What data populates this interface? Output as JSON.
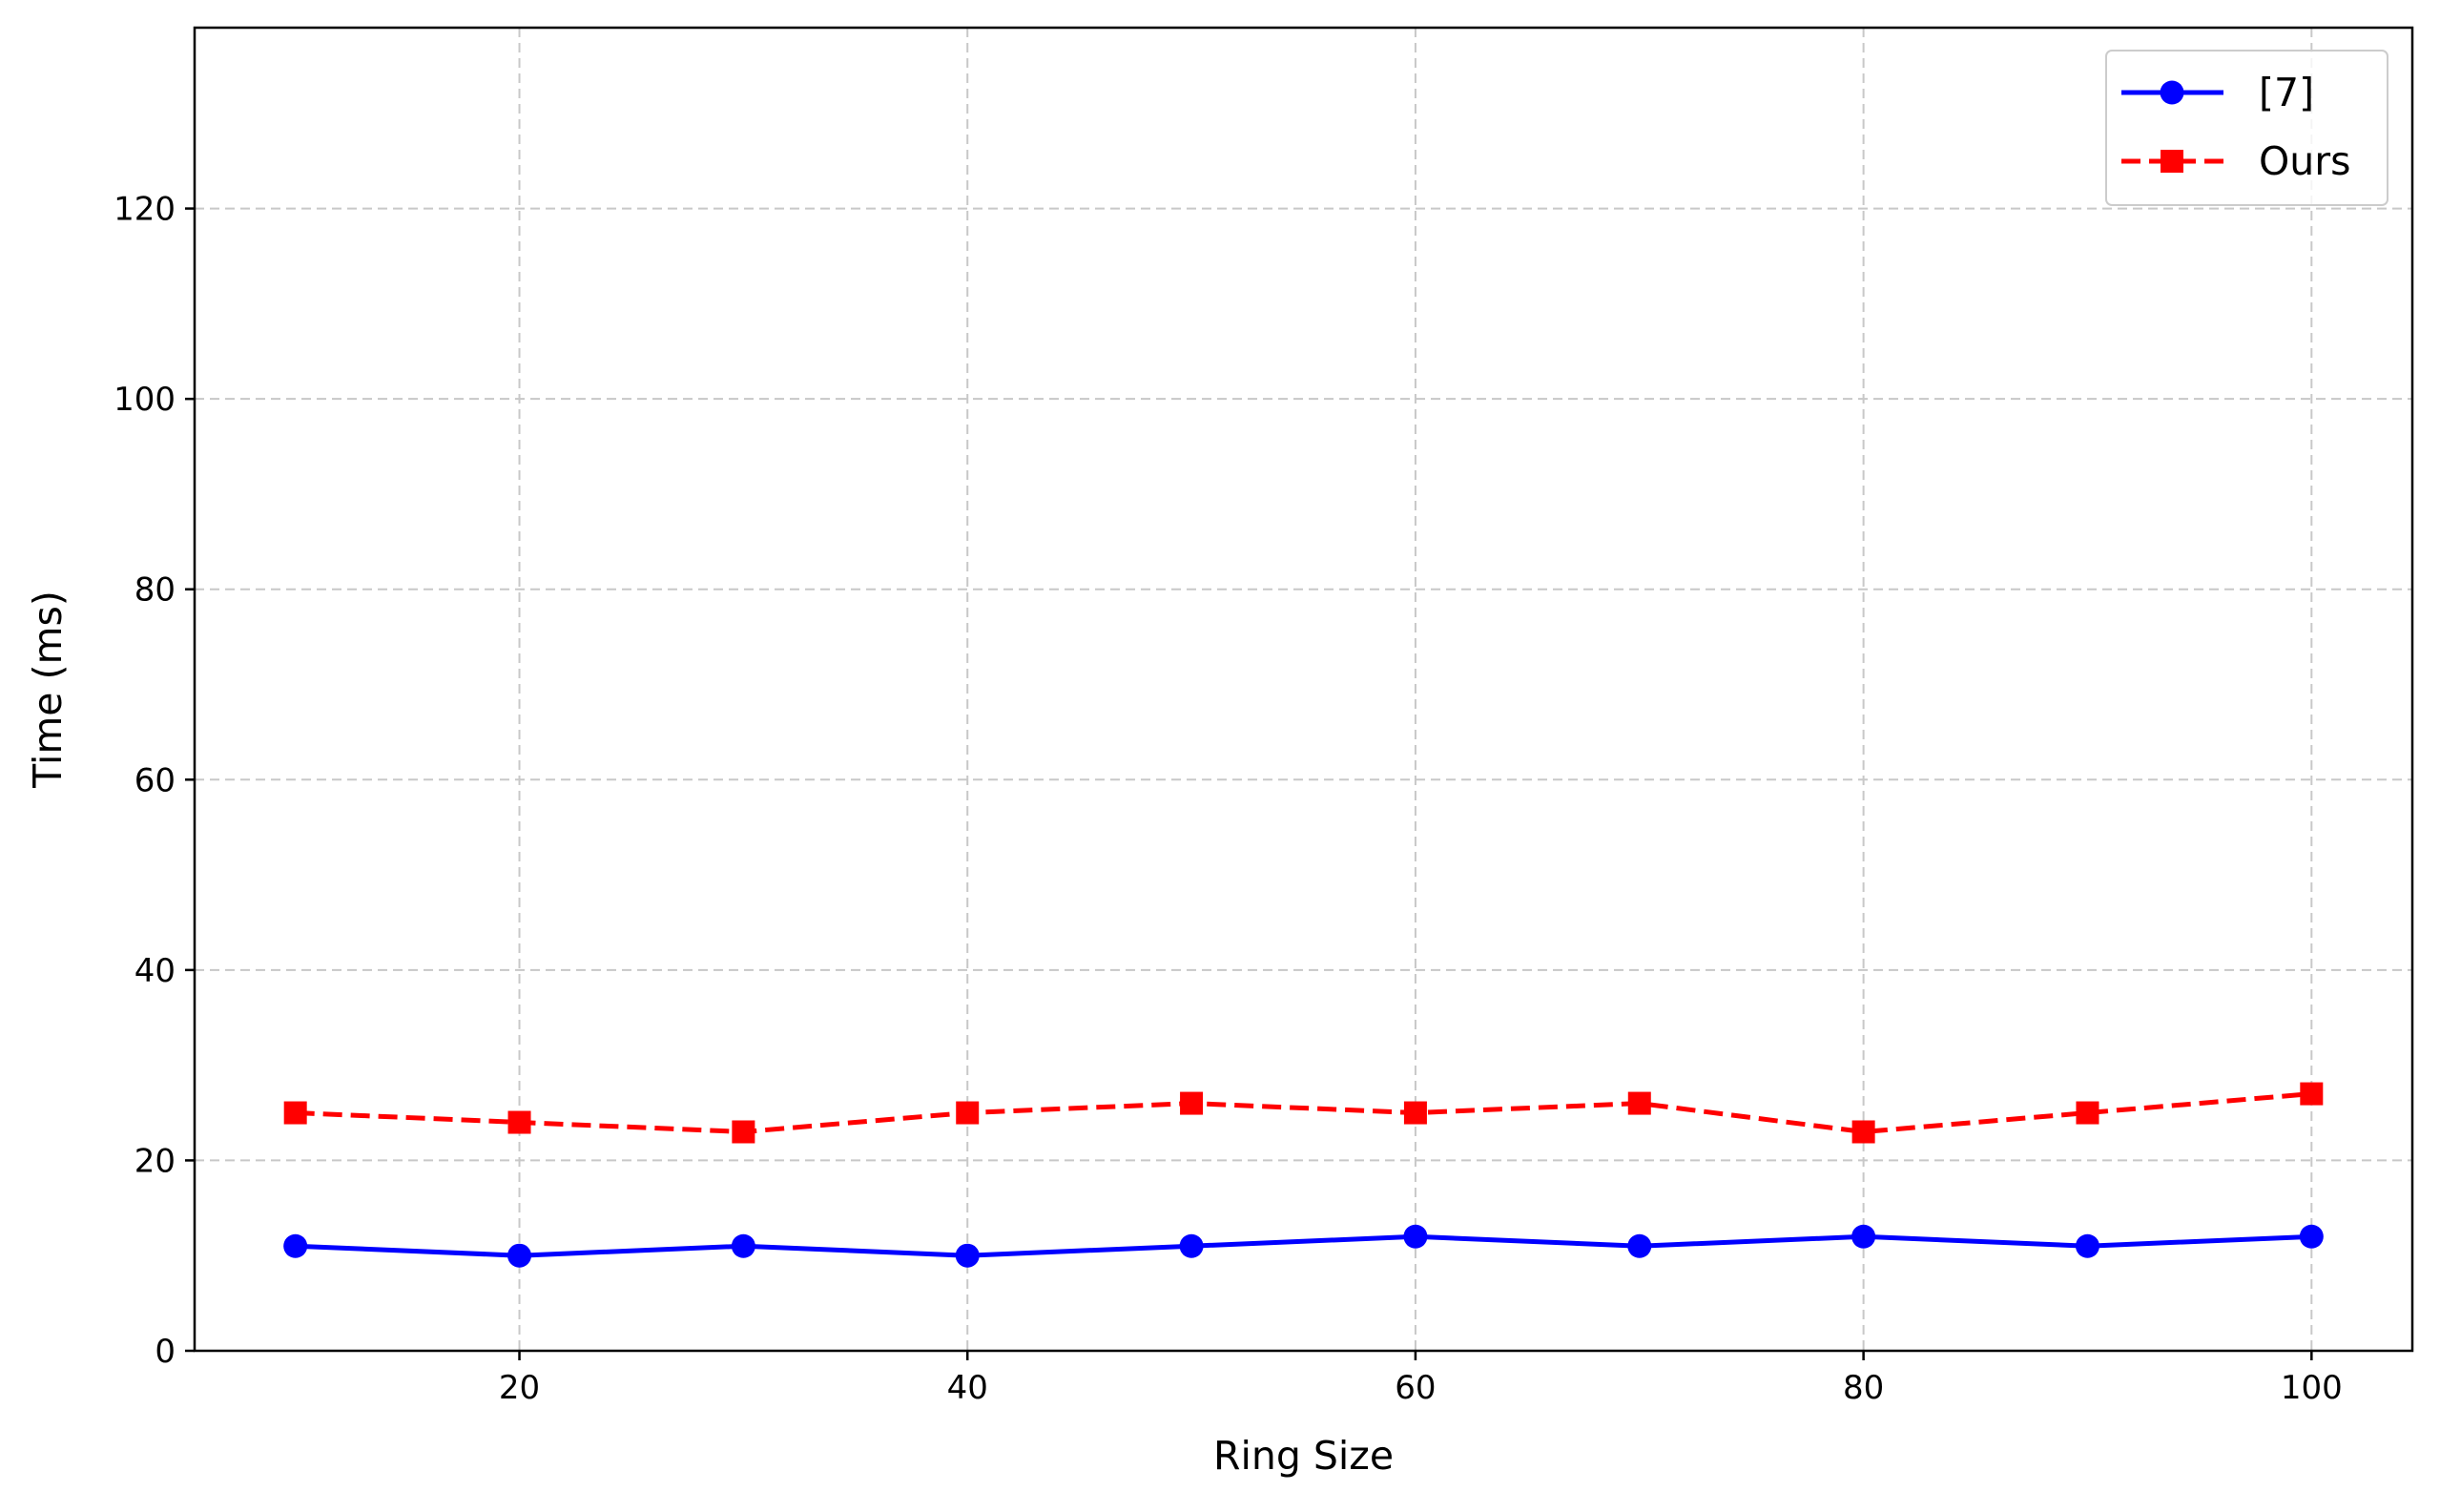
{
  "chart_data": {
    "type": "line",
    "title": "",
    "xlabel": "Ring Size",
    "ylabel": "Time (ms)",
    "xlim": [
      5.5,
      104.5
    ],
    "ylim": [
      0,
      139
    ],
    "xticks": [
      20,
      40,
      60,
      80,
      100
    ],
    "yticks": [
      0,
      20,
      40,
      60,
      80,
      100,
      120
    ],
    "grid": true,
    "legend_position": "top-right",
    "x": [
      10,
      20,
      30,
      40,
      50,
      60,
      70,
      80,
      90,
      100
    ],
    "series": [
      {
        "name": "[7]",
        "color": "#0000ff",
        "marker": "circle",
        "line_style": "solid",
        "values": [
          11,
          10,
          11,
          10,
          11,
          12,
          11,
          12,
          11,
          12
        ]
      },
      {
        "name": "Ours",
        "color": "#ff0000",
        "marker": "square",
        "line_style": "dashed",
        "values": [
          25,
          24,
          23,
          25,
          26,
          25,
          26,
          23,
          25,
          27
        ]
      }
    ]
  }
}
